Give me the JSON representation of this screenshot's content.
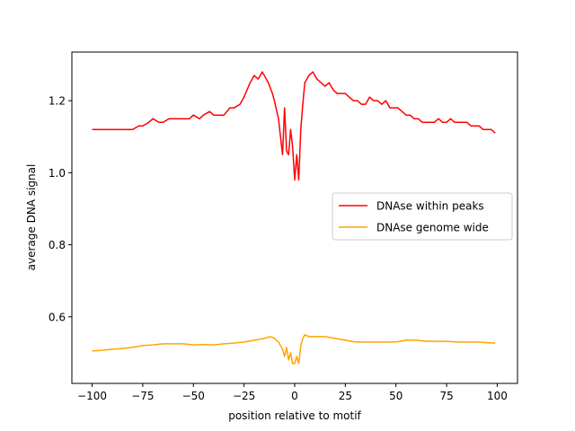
{
  "chart_data": {
    "type": "line",
    "title": "",
    "xlabel": "position relative to motif",
    "ylabel": "average DNA signal",
    "xlim": [
      -110,
      110
    ],
    "ylim": [
      0.415,
      1.335
    ],
    "xticks": [
      -100,
      -75,
      -50,
      -25,
      0,
      25,
      50,
      75,
      100
    ],
    "xtick_labels": [
      "−100",
      "−75",
      "−50",
      "−25",
      "0",
      "25",
      "50",
      "75",
      "100"
    ],
    "yticks": [
      0.6,
      0.8,
      1.0,
      1.2
    ],
    "ytick_labels": [
      "0.6",
      "0.8",
      "1.0",
      "1.2"
    ],
    "grid": false,
    "legend_position": "center-right",
    "series": [
      {
        "name": "DNAse within peaks",
        "color": "#ff0000",
        "points": [
          [
            -100,
            1.12
          ],
          [
            -97,
            1.12
          ],
          [
            -95,
            1.12
          ],
          [
            -92,
            1.12
          ],
          [
            -90,
            1.12
          ],
          [
            -87,
            1.12
          ],
          [
            -85,
            1.12
          ],
          [
            -82,
            1.12
          ],
          [
            -80,
            1.12
          ],
          [
            -77,
            1.13
          ],
          [
            -75,
            1.13
          ],
          [
            -72,
            1.14
          ],
          [
            -70,
            1.15
          ],
          [
            -67,
            1.14
          ],
          [
            -65,
            1.14
          ],
          [
            -62,
            1.15
          ],
          [
            -60,
            1.15
          ],
          [
            -57,
            1.15
          ],
          [
            -55,
            1.15
          ],
          [
            -52,
            1.15
          ],
          [
            -50,
            1.16
          ],
          [
            -47,
            1.15
          ],
          [
            -45,
            1.16
          ],
          [
            -42,
            1.17
          ],
          [
            -40,
            1.16
          ],
          [
            -37,
            1.16
          ],
          [
            -35,
            1.16
          ],
          [
            -32,
            1.18
          ],
          [
            -30,
            1.18
          ],
          [
            -27,
            1.19
          ],
          [
            -25,
            1.21
          ],
          [
            -22,
            1.25
          ],
          [
            -20,
            1.27
          ],
          [
            -18,
            1.26
          ],
          [
            -16,
            1.28
          ],
          [
            -15,
            1.27
          ],
          [
            -13,
            1.25
          ],
          [
            -11,
            1.22
          ],
          [
            -10,
            1.2
          ],
          [
            -8,
            1.15
          ],
          [
            -7,
            1.1
          ],
          [
            -6,
            1.05
          ],
          [
            -5,
            1.18
          ],
          [
            -4,
            1.06
          ],
          [
            -3,
            1.05
          ],
          [
            -2,
            1.12
          ],
          [
            -1,
            1.07
          ],
          [
            0,
            0.98
          ],
          [
            1,
            1.05
          ],
          [
            2,
            0.98
          ],
          [
            3,
            1.12
          ],
          [
            4,
            1.19
          ],
          [
            5,
            1.25
          ],
          [
            7,
            1.27
          ],
          [
            9,
            1.28
          ],
          [
            11,
            1.26
          ],
          [
            13,
            1.25
          ],
          [
            15,
            1.24
          ],
          [
            17,
            1.25
          ],
          [
            19,
            1.23
          ],
          [
            21,
            1.22
          ],
          [
            23,
            1.22
          ],
          [
            25,
            1.22
          ],
          [
            27,
            1.21
          ],
          [
            29,
            1.2
          ],
          [
            31,
            1.2
          ],
          [
            33,
            1.19
          ],
          [
            35,
            1.19
          ],
          [
            37,
            1.21
          ],
          [
            39,
            1.2
          ],
          [
            41,
            1.2
          ],
          [
            43,
            1.19
          ],
          [
            45,
            1.2
          ],
          [
            47,
            1.18
          ],
          [
            49,
            1.18
          ],
          [
            51,
            1.18
          ],
          [
            53,
            1.17
          ],
          [
            55,
            1.16
          ],
          [
            57,
            1.16
          ],
          [
            59,
            1.15
          ],
          [
            61,
            1.15
          ],
          [
            63,
            1.14
          ],
          [
            65,
            1.14
          ],
          [
            67,
            1.14
          ],
          [
            69,
            1.14
          ],
          [
            71,
            1.15
          ],
          [
            73,
            1.14
          ],
          [
            75,
            1.14
          ],
          [
            77,
            1.15
          ],
          [
            79,
            1.14
          ],
          [
            81,
            1.14
          ],
          [
            83,
            1.14
          ],
          [
            85,
            1.14
          ],
          [
            87,
            1.13
          ],
          [
            89,
            1.13
          ],
          [
            91,
            1.13
          ],
          [
            93,
            1.12
          ],
          [
            95,
            1.12
          ],
          [
            97,
            1.12
          ],
          [
            99,
            1.11
          ]
        ]
      },
      {
        "name": "DNAse genome wide",
        "color": "#ffa500",
        "points": [
          [
            -100,
            0.505
          ],
          [
            -95,
            0.507
          ],
          [
            -90,
            0.51
          ],
          [
            -85,
            0.512
          ],
          [
            -80,
            0.515
          ],
          [
            -75,
            0.52
          ],
          [
            -70,
            0.522
          ],
          [
            -65,
            0.525
          ],
          [
            -60,
            0.525
          ],
          [
            -55,
            0.525
          ],
          [
            -50,
            0.522
          ],
          [
            -45,
            0.523
          ],
          [
            -40,
            0.522
          ],
          [
            -35,
            0.525
          ],
          [
            -30,
            0.527
          ],
          [
            -25,
            0.53
          ],
          [
            -20,
            0.535
          ],
          [
            -15,
            0.54
          ],
          [
            -12,
            0.545
          ],
          [
            -10,
            0.54
          ],
          [
            -8,
            0.53
          ],
          [
            -6,
            0.51
          ],
          [
            -5,
            0.49
          ],
          [
            -4,
            0.515
          ],
          [
            -3,
            0.48
          ],
          [
            -2,
            0.5
          ],
          [
            -1,
            0.47
          ],
          [
            0,
            0.47
          ],
          [
            1,
            0.49
          ],
          [
            2,
            0.47
          ],
          [
            3,
            0.52
          ],
          [
            4,
            0.54
          ],
          [
            5,
            0.55
          ],
          [
            7,
            0.545
          ],
          [
            10,
            0.545
          ],
          [
            15,
            0.545
          ],
          [
            20,
            0.54
          ],
          [
            25,
            0.535
          ],
          [
            30,
            0.53
          ],
          [
            35,
            0.53
          ],
          [
            40,
            0.53
          ],
          [
            45,
            0.53
          ],
          [
            50,
            0.53
          ],
          [
            55,
            0.535
          ],
          [
            60,
            0.535
          ],
          [
            65,
            0.532
          ],
          [
            70,
            0.532
          ],
          [
            75,
            0.532
          ],
          [
            80,
            0.53
          ],
          [
            85,
            0.53
          ],
          [
            90,
            0.53
          ],
          [
            95,
            0.528
          ],
          [
            99,
            0.527
          ]
        ]
      }
    ]
  }
}
